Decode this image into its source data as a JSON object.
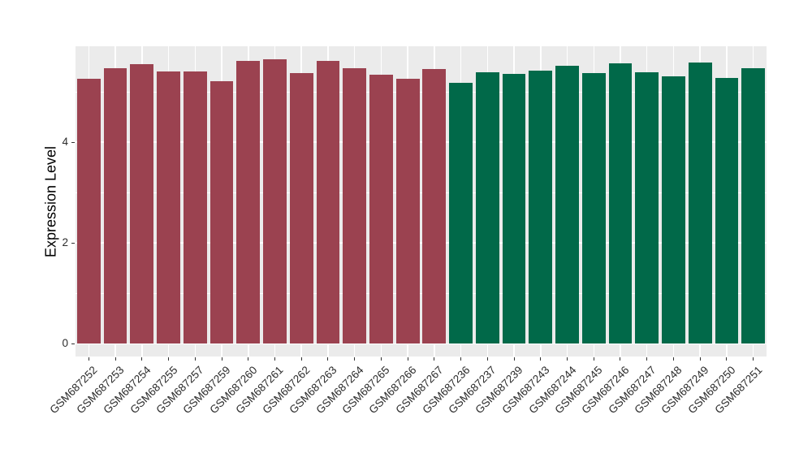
{
  "chart_data": {
    "type": "bar",
    "title": "",
    "xlabel": "",
    "ylabel": "Expression Level",
    "legend_position": "none",
    "grid": "on",
    "panel_bg": "#EBEBEB",
    "grid_color": "#FFFFFF",
    "tick_color": "#333333",
    "group_colors": {
      "left_group": "#9B4250",
      "right_group": "#016949"
    },
    "categories": [
      "GSM687252",
      "GSM687253",
      "GSM687254",
      "GSM687255",
      "GSM687257",
      "GSM687259",
      "GSM687260",
      "GSM687261",
      "GSM687262",
      "GSM687263",
      "GSM687264",
      "GSM687265",
      "GSM687266",
      "GSM687267",
      "GSM687236",
      "GSM687237",
      "GSM687239",
      "GSM687243",
      "GSM687244",
      "GSM687245",
      "GSM687246",
      "GSM687247",
      "GSM687248",
      "GSM687249",
      "GSM687250",
      "GSM687251"
    ],
    "values": [
      5.25,
      5.47,
      5.55,
      5.4,
      5.4,
      5.21,
      5.61,
      5.64,
      5.37,
      5.61,
      5.47,
      5.34,
      5.26,
      5.45,
      5.18,
      5.38,
      5.36,
      5.41,
      5.51,
      5.37,
      5.56,
      5.39,
      5.3,
      5.57,
      5.28,
      5.47
    ],
    "bar_colors": [
      "#9B4250",
      "#9B4250",
      "#9B4250",
      "#9B4250",
      "#9B4250",
      "#9B4250",
      "#9B4250",
      "#9B4250",
      "#9B4250",
      "#9B4250",
      "#9B4250",
      "#9B4250",
      "#9B4250",
      "#9B4250",
      "#016949",
      "#016949",
      "#016949",
      "#016949",
      "#016949",
      "#016949",
      "#016949",
      "#016949",
      "#016949",
      "#016949",
      "#016949",
      "#016949"
    ],
    "yticks": [
      0,
      2,
      4
    ],
    "ytick_labels": [
      "0",
      "2",
      "4"
    ],
    "yticks_minor": [
      1,
      3,
      5
    ],
    "ylim": [
      -0.25,
      5.9
    ]
  }
}
